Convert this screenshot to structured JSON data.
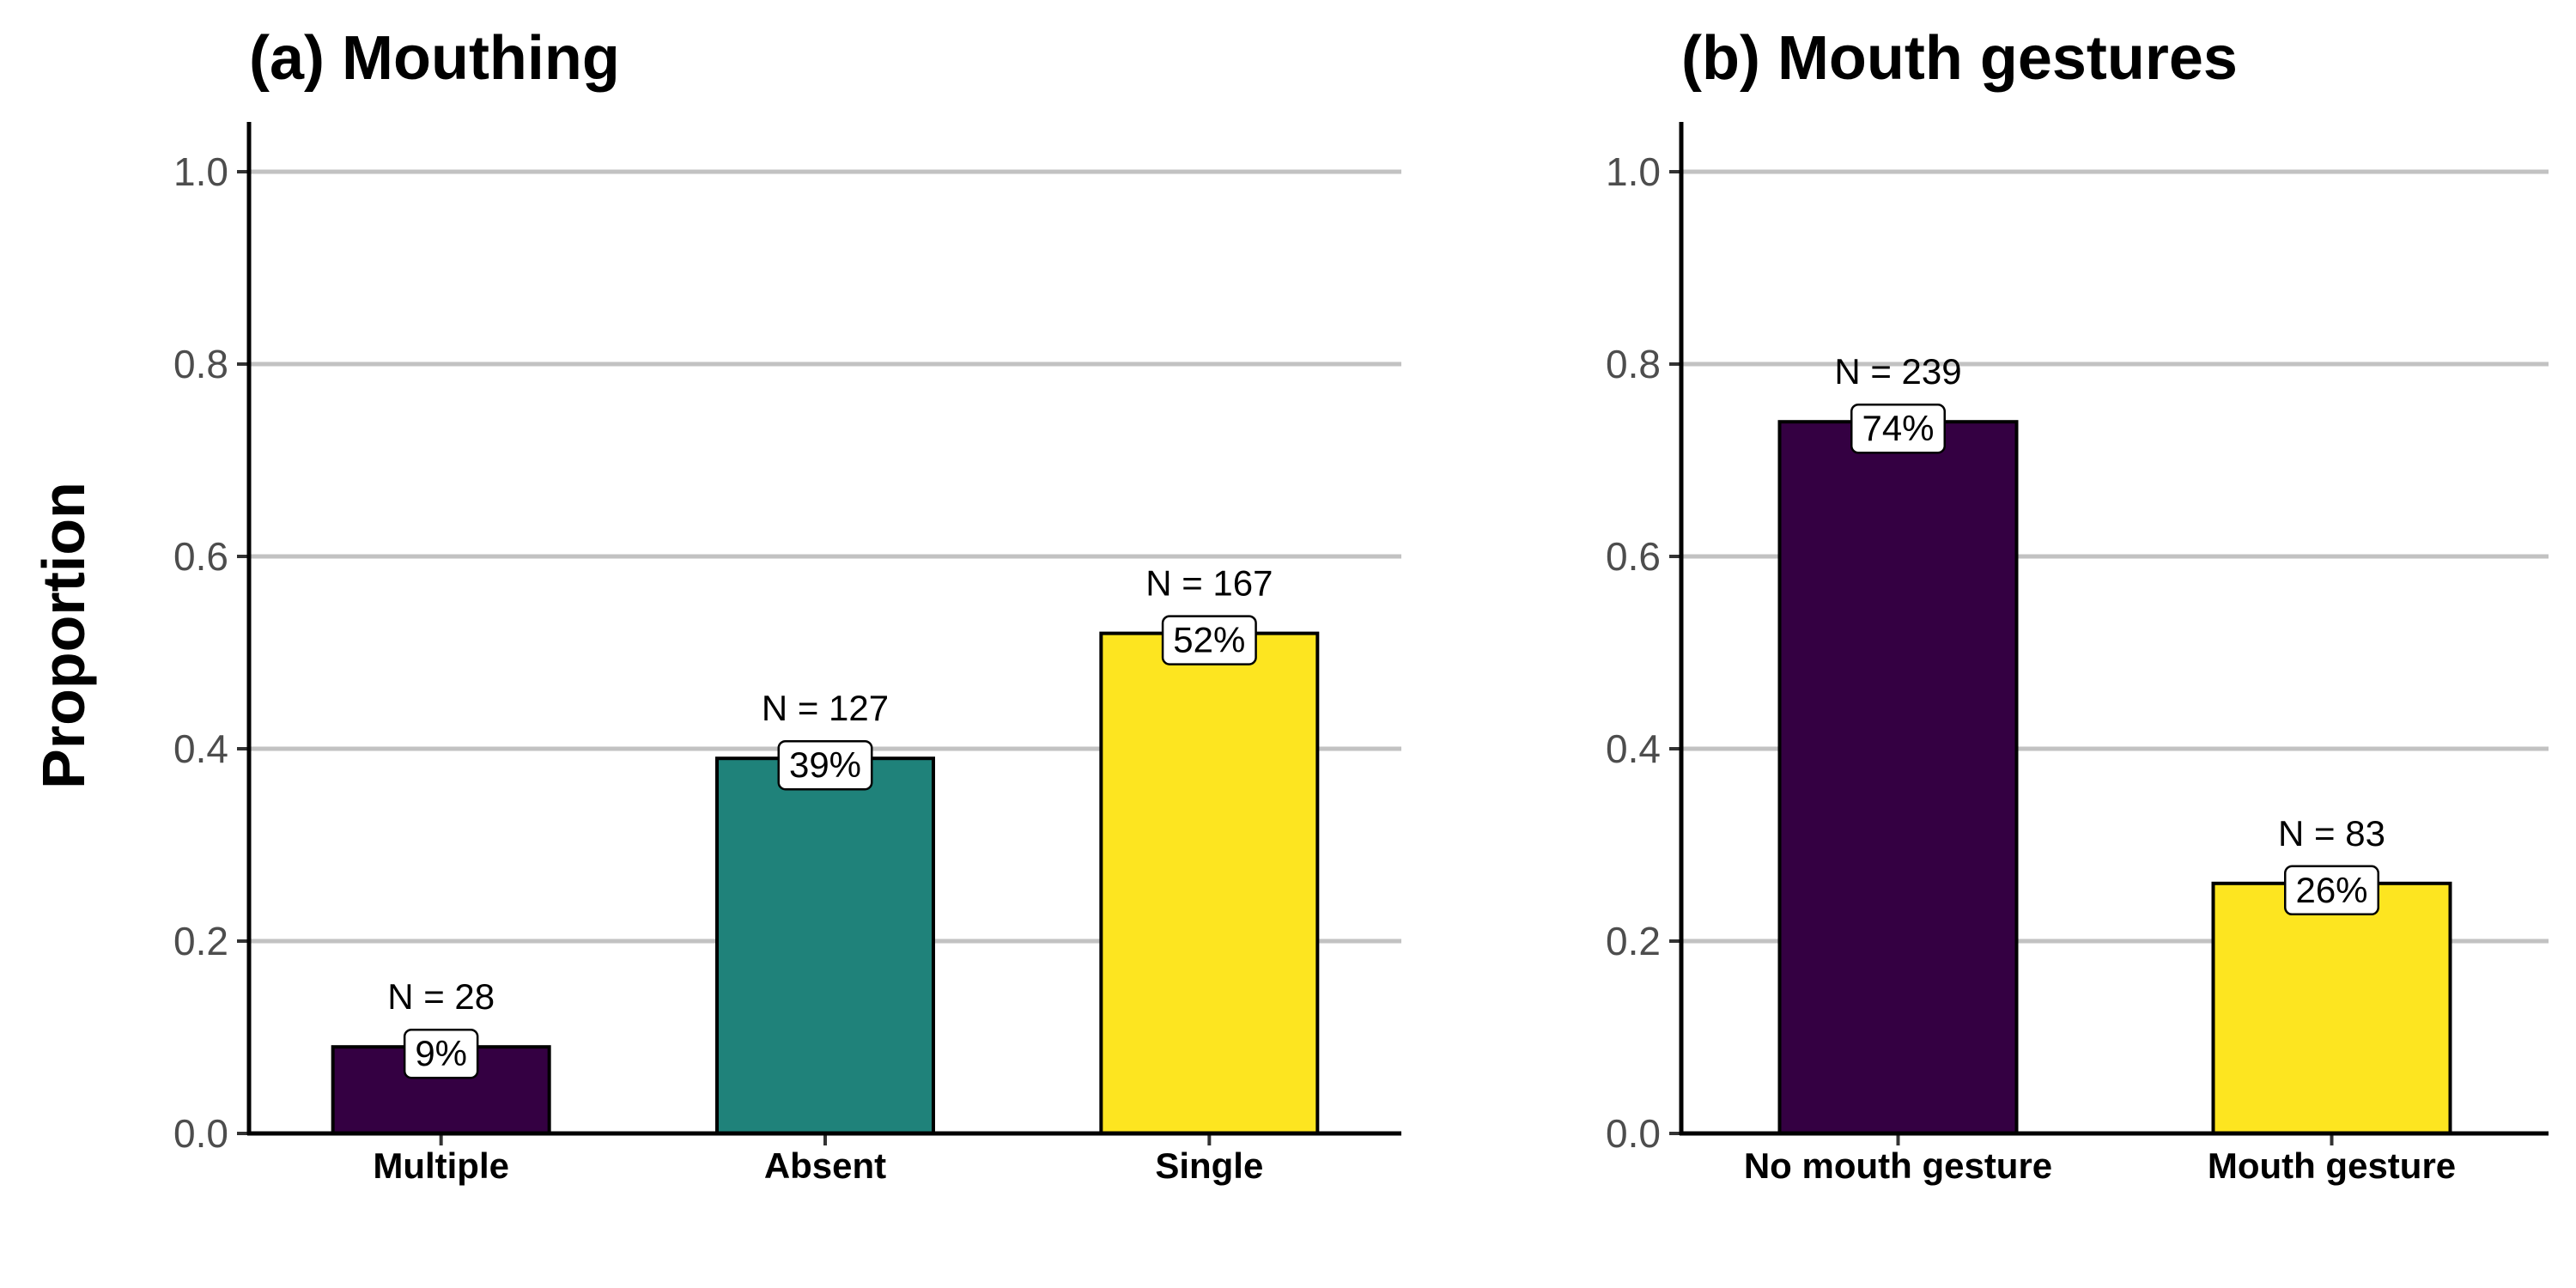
{
  "figure": {
    "ylabel": "Proportion"
  },
  "chart_data": [
    {
      "type": "bar",
      "title": "(a) Mouthing",
      "xlabel": "",
      "ylabel": "Proportion",
      "ylim": [
        0,
        1.0
      ],
      "yticks": [
        "0.0",
        "0.2",
        "0.4",
        "0.6",
        "0.8",
        "1.0"
      ],
      "grid": "horizontal",
      "categories": [
        "Multiple",
        "Absent",
        "Single"
      ],
      "values": [
        0.09,
        0.39,
        0.52
      ],
      "counts": [
        "N = 28",
        "N = 127",
        "N = 167"
      ],
      "percent_labels": [
        "9%",
        "39%",
        "52%"
      ],
      "colors": [
        "#340042",
        "#1f827a",
        "#fde520"
      ]
    },
    {
      "type": "bar",
      "title": "(b) Mouth gestures",
      "xlabel": "",
      "ylabel": "",
      "ylim": [
        0,
        1.0
      ],
      "yticks": [
        "0.0",
        "0.2",
        "0.4",
        "0.6",
        "0.8",
        "1.0"
      ],
      "grid": "horizontal",
      "categories": [
        "No mouth gesture",
        "Mouth gesture"
      ],
      "values": [
        0.74,
        0.26
      ],
      "counts": [
        "N = 239",
        "N = 83"
      ],
      "percent_labels": [
        "74%",
        "26%"
      ],
      "colors": [
        "#340042",
        "#fde520"
      ]
    }
  ]
}
